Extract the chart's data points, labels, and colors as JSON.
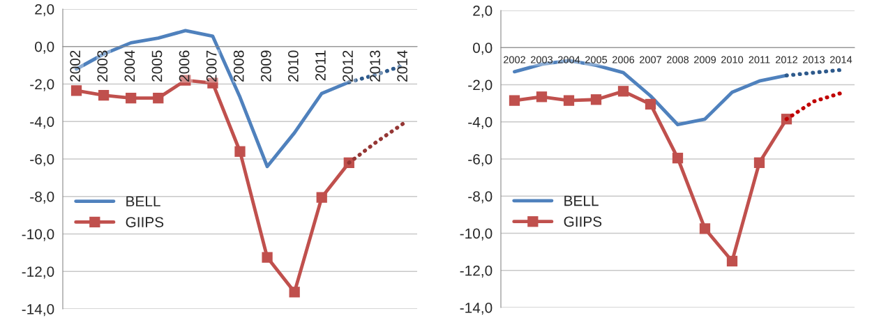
{
  "chart_data": [
    {
      "type": "line",
      "categories": [
        "2002",
        "2003",
        "2004",
        "2005",
        "2006",
        "2007",
        "2008",
        "2009",
        "2010",
        "2011",
        "2012",
        "2013",
        "2014"
      ],
      "series": [
        {
          "name": "BELL",
          "color": "#4f81bd",
          "marker": "none",
          "line_style": "solid",
          "values": [
            -1.2,
            -0.4,
            0.2,
            0.45,
            0.85,
            0.55,
            -2.7,
            -6.4,
            -4.6,
            -2.5,
            -1.9,
            null,
            null
          ]
        },
        {
          "name": "GIIPS",
          "color": "#c0504d",
          "marker": "square",
          "line_style": "solid",
          "values": [
            -2.35,
            -2.6,
            -2.75,
            -2.75,
            -1.8,
            -1.95,
            -5.6,
            -11.25,
            -13.1,
            -8.05,
            -6.2,
            null,
            null
          ]
        },
        {
          "color": "#2e5a8c",
          "marker": "none",
          "line_style": "dotted",
          "values": [
            null,
            null,
            null,
            null,
            null,
            null,
            null,
            null,
            null,
            null,
            -1.9,
            -1.5,
            -1.0
          ]
        },
        {
          "color": "#953735",
          "marker": "none",
          "line_style": "dotted",
          "values": [
            null,
            null,
            null,
            null,
            null,
            null,
            null,
            null,
            null,
            null,
            -6.2,
            -5.1,
            -4.1
          ]
        }
      ],
      "ylim": [
        -14,
        2
      ],
      "yticks": [
        {
          "value": 2,
          "label": "2,0"
        },
        {
          "value": 0,
          "label": "0,0"
        },
        {
          "value": -2,
          "label": "-2,0"
        },
        {
          "value": -4,
          "label": "-4,0"
        },
        {
          "value": -6,
          "label": "-6,0"
        },
        {
          "value": -8,
          "label": "-8,0"
        },
        {
          "value": -10,
          "label": "-10,0"
        },
        {
          "value": -12,
          "label": "-12,0"
        },
        {
          "value": -14,
          "label": "-14,0"
        }
      ],
      "grid": "y",
      "legend": "left"
    },
    {
      "type": "line",
      "categories": [
        "2002",
        "2003",
        "2004",
        "2005",
        "2006",
        "2007",
        "2008",
        "2009",
        "2010",
        "2011",
        "2012",
        "2013",
        "2014"
      ],
      "series": [
        {
          "name": "BELL",
          "color": "#4f81bd",
          "marker": "none",
          "line_style": "solid",
          "values": [
            -1.3,
            -0.9,
            -0.7,
            -0.95,
            -1.35,
            -2.6,
            -4.15,
            -3.85,
            -2.4,
            -1.8,
            -1.5,
            null,
            null
          ]
        },
        {
          "name": "GIIPS",
          "color": "#c0504d",
          "marker": "square",
          "line_style": "solid",
          "values": [
            -2.85,
            -2.65,
            -2.85,
            -2.8,
            -2.35,
            -3.05,
            -5.95,
            -9.75,
            -11.5,
            -6.2,
            -3.85,
            null,
            null
          ]
        },
        {
          "color": "#2e5a8c",
          "marker": "none",
          "line_style": "dotted",
          "values": [
            null,
            null,
            null,
            null,
            null,
            null,
            null,
            null,
            null,
            null,
            -1.5,
            -1.35,
            -1.2
          ]
        },
        {
          "color": "#c00000",
          "marker": "none",
          "line_style": "dotted",
          "values": [
            null,
            null,
            null,
            null,
            null,
            null,
            null,
            null,
            null,
            null,
            -3.85,
            -2.9,
            -2.45
          ]
        }
      ],
      "ylim": [
        -14,
        2
      ],
      "yticks": [
        {
          "value": 2,
          "label": "2,0"
        },
        {
          "value": 0,
          "label": "0,0"
        },
        {
          "value": -2,
          "label": "-2,0"
        },
        {
          "value": -4,
          "label": "-4,0"
        },
        {
          "value": -6,
          "label": "-6,0"
        },
        {
          "value": -8,
          "label": "-8,0"
        },
        {
          "value": -10,
          "label": "-10,0"
        },
        {
          "value": -12,
          "label": "-12,0"
        },
        {
          "value": -14,
          "label": "-14,0"
        }
      ],
      "grid": "y",
      "legend": "left"
    }
  ]
}
